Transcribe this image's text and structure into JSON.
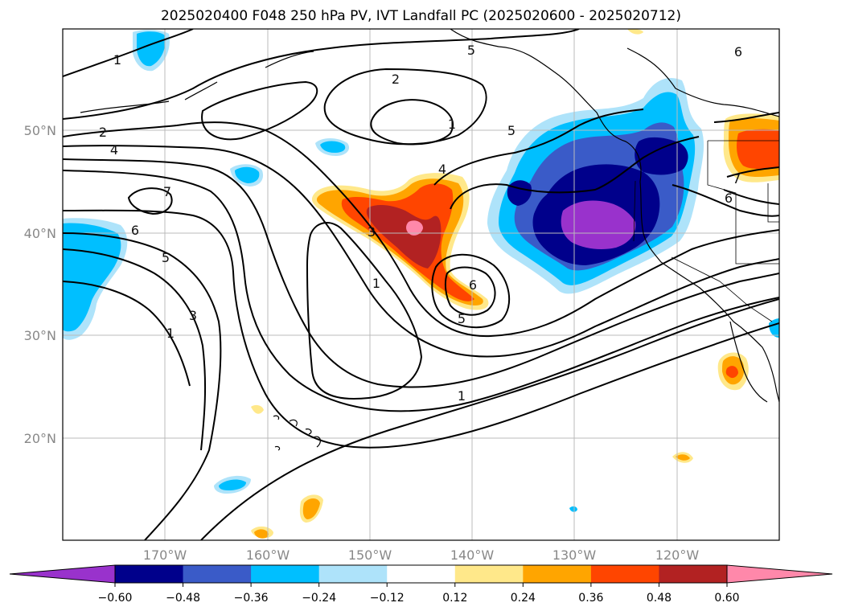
{
  "title": "2025020400 F048 250 hPa PV, IVT Landfall PC (2025020600 - 2025020712)",
  "lat_labels": [
    "50°N",
    "40°N",
    "30°N",
    "20°N"
  ],
  "lon_labels": [
    "170°W",
    "160°W",
    "150°W",
    "140°W",
    "130°W",
    "120°W"
  ],
  "colorbar": {
    "tick_labels": [
      "−0.60",
      "−0.48",
      "−0.36",
      "−0.24",
      "−0.12",
      "0.12",
      "0.24",
      "0.36",
      "0.48",
      "0.60"
    ],
    "colors": [
      "#9932cc",
      "#00008b",
      "#3a5bc8",
      "#00bfff",
      "#aee3fa",
      "#ffffff",
      "#ffe88a",
      "#ffa500",
      "#ff4500",
      "#b22222",
      "#ff88aa"
    ]
  },
  "contour_labels": [
    "1",
    "2",
    "4",
    "7",
    "6",
    "5",
    "3",
    "1",
    "2",
    "1",
    "5",
    "5",
    "4",
    "3",
    "1",
    "6",
    "5",
    "1",
    "6",
    "7",
    "6"
  ]
}
